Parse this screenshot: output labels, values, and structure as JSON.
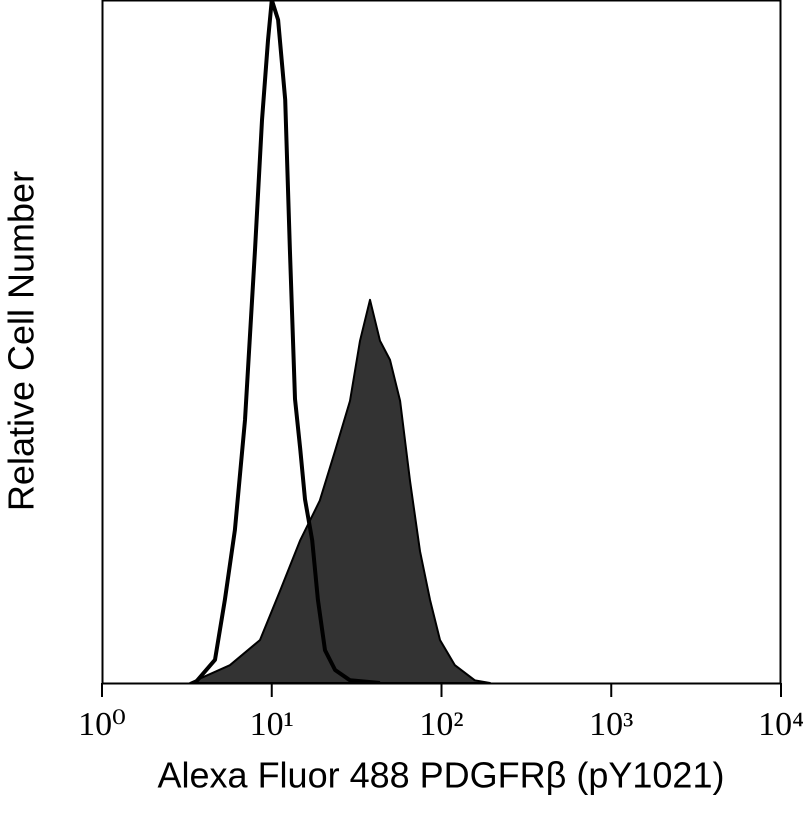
{
  "chart_data": {
    "type": "area",
    "x_label": "Alexa Fluor 488 PDGFRβ (pY1021)",
    "y_label": "Relative Cell Number",
    "xscale": "log",
    "xlim": [
      1,
      10000
    ],
    "xticks": [
      {
        "value": 1,
        "label": "10⁰"
      },
      {
        "value": 10,
        "label": "10¹"
      },
      {
        "value": 100,
        "label": "10²"
      },
      {
        "value": 1000,
        "label": "10³"
      },
      {
        "value": 10000,
        "label": "10⁴"
      }
    ],
    "ylim": [
      0,
      100
    ],
    "series": [
      {
        "color": "#000000",
        "fill": "#333333",
        "x": [
          3.3,
          5.67,
          8.53,
          11.2,
          14.7,
          19.2,
          23.6,
          28.9,
          33.1,
          37.9,
          43.4,
          49.7,
          57.0,
          65.2,
          74.7,
          85.5,
          98.0,
          120,
          157,
          193
        ],
        "values": [
          0,
          2.6,
          6.3,
          13.5,
          20.9,
          26.7,
          34.0,
          41.3,
          50.1,
          56.1,
          50.1,
          47.3,
          41.3,
          29.6,
          19.3,
          12.2,
          6.3,
          2.6,
          0.4,
          0
        ]
      },
      {
        "color": "#000000",
        "fill": "none",
        "x": [
          3.53,
          4.63,
          5.3,
          6.07,
          6.96,
          7.97,
          8.76,
          9.51,
          10.0,
          10.9,
          12.0,
          12.8,
          13.7,
          14.7,
          15.7,
          17.3,
          18.7,
          20.6,
          23.6,
          28.9,
          43.4
        ],
        "values": [
          0,
          3.4,
          12.2,
          22.4,
          38.5,
          63.4,
          82.4,
          94.1,
          100,
          97.1,
          85.4,
          63.4,
          41.6,
          34.3,
          26.9,
          20.9,
          12.2,
          4.8,
          1.9,
          0.4,
          0
        ]
      }
    ]
  }
}
